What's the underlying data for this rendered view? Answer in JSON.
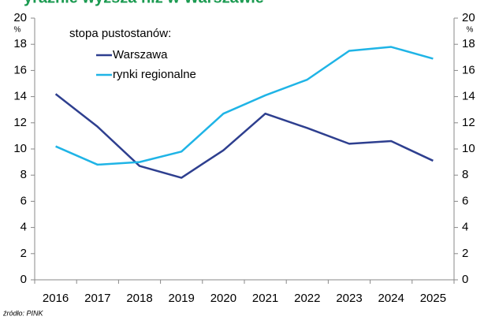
{
  "chart_data": {
    "type": "line",
    "title": "yraźnie wyższa niż w Warszawie",
    "legend_title": "stopa pustostanów:",
    "y_label": "%",
    "y2_label": "%",
    "source": "źródło: PINK",
    "categories": [
      "2016",
      "2017",
      "2018",
      "2019",
      "2020",
      "2021",
      "2022",
      "2023",
      "2024",
      "2025"
    ],
    "series": [
      {
        "name": "Warszawa",
        "color": "#2e3f8f",
        "values": [
          14.2,
          11.7,
          8.7,
          7.8,
          9.9,
          12.7,
          11.6,
          10.4,
          10.6,
          9.1
        ]
      },
      {
        "name": "rynki regionalne",
        "color": "#1fb4e6",
        "values": [
          10.2,
          8.8,
          9.0,
          9.8,
          12.7,
          14.1,
          15.3,
          17.5,
          17.8,
          16.9
        ]
      }
    ],
    "ylim": [
      0,
      20
    ],
    "yticks": [
      0,
      2,
      4,
      6,
      8,
      10,
      12,
      14,
      16,
      18,
      20
    ],
    "y2lim": [
      0,
      20
    ],
    "y2ticks": [
      0,
      2,
      4,
      6,
      8,
      10,
      12,
      14,
      16,
      18,
      20
    ]
  }
}
